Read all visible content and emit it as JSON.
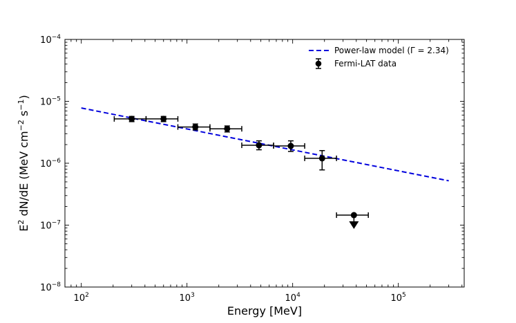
{
  "chart_data": {
    "type": "scatter",
    "x_scale": "log",
    "y_scale": "log",
    "xlabel": "Energy [MeV]",
    "ylabel_parts": [
      "E",
      "2",
      " dN/dE (MeV cm",
      "−2",
      " s",
      "−1",
      ")"
    ],
    "xlim": [
      70,
      420000
    ],
    "ylim": [
      1e-08,
      0.0001
    ],
    "x_ticks": [
      {
        "value": 100,
        "base": "10",
        "exp": "2"
      },
      {
        "value": 1000,
        "base": "10",
        "exp": "3"
      },
      {
        "value": 10000,
        "base": "10",
        "exp": "4"
      },
      {
        "value": 100000,
        "base": "10",
        "exp": "5"
      }
    ],
    "y_ticks": [
      {
        "value": 1e-08,
        "base": "10",
        "exp": "−8"
      },
      {
        "value": 1e-07,
        "base": "10",
        "exp": "−7"
      },
      {
        "value": 1e-06,
        "base": "10",
        "exp": "−6"
      },
      {
        "value": 1e-05,
        "base": "10",
        "exp": "−5"
      },
      {
        "value": 0.0001,
        "base": "10",
        "exp": "−4"
      }
    ],
    "model": {
      "name": "Power-law model (Γ = 2.34)",
      "color": "#0000dd",
      "style": "dashed",
      "x": [
        100,
        300000
      ],
      "y": [
        7.8e-06,
        5.2e-07
      ]
    },
    "data_series": {
      "name": "Fermi-LAT data",
      "color": "#000000",
      "points": [
        {
          "x": 300,
          "xlo": 205,
          "xhi": 410,
          "y": 5.2e-06,
          "ylo": 4.7e-06,
          "yhi": 5.7e-06
        },
        {
          "x": 600,
          "xlo": 410,
          "xhi": 820,
          "y": 5.2e-06,
          "ylo": 4.7e-06,
          "yhi": 5.7e-06
        },
        {
          "x": 1200,
          "xlo": 820,
          "xhi": 1650,
          "y": 3.85e-06,
          "ylo": 3.45e-06,
          "yhi": 4.3e-06
        },
        {
          "x": 2400,
          "xlo": 1650,
          "xhi": 3300,
          "y": 3.6e-06,
          "ylo": 3.2e-06,
          "yhi": 4e-06
        },
        {
          "x": 4800,
          "xlo": 3300,
          "xhi": 6600,
          "y": 1.95e-06,
          "ylo": 1.65e-06,
          "yhi": 2.3e-06
        },
        {
          "x": 9600,
          "xlo": 6600,
          "xhi": 13000,
          "y": 1.9e-06,
          "ylo": 1.55e-06,
          "yhi": 2.3e-06
        },
        {
          "x": 19000,
          "xlo": 13000,
          "xhi": 26000,
          "y": 1.2e-06,
          "ylo": 7.8e-07,
          "yhi": 1.6e-06
        }
      ],
      "upper_limits": [
        {
          "x": 38000,
          "xlo": 26000,
          "xhi": 52000,
          "y": 1.45e-07
        }
      ]
    },
    "legend": {
      "position": "top-right",
      "entries": [
        "Power-law model (Γ = 2.34)",
        "Fermi-LAT data"
      ]
    }
  }
}
